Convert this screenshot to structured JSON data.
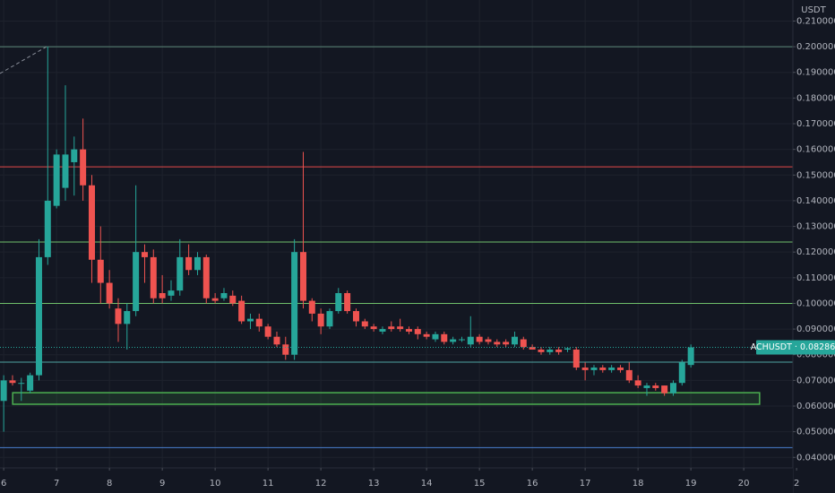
{
  "chart_data": {
    "type": "candlestick",
    "axis_unit": "USDT",
    "x": [
      6,
      6.167,
      6.333,
      6.5,
      6.667,
      6.833,
      7,
      7.167,
      7.333,
      7.5,
      7.667,
      7.833,
      8,
      8.167,
      8.333,
      8.5,
      8.667,
      8.833,
      9,
      9.167,
      9.333,
      9.5,
      9.667,
      9.833,
      10,
      10.167,
      10.333,
      10.5,
      10.667,
      10.833,
      11,
      11.167,
      11.333,
      11.5,
      11.667,
      11.833,
      12,
      12.167,
      12.333,
      12.5,
      12.667,
      12.833,
      13,
      13.167,
      13.333,
      13.5,
      13.667,
      13.833,
      14,
      14.167,
      14.333,
      14.5,
      14.667,
      14.833,
      15,
      15.167,
      15.333,
      15.5,
      15.667,
      15.833,
      16,
      16.167,
      16.333,
      16.5,
      16.667,
      16.833,
      17,
      17.167,
      17.333,
      17.5,
      17.667,
      17.833,
      18,
      18.167,
      18.333,
      18.5,
      18.667,
      18.833,
      19
    ],
    "open": [
      0.062,
      0.07,
      0.069,
      0.066,
      0.072,
      0.118,
      0.138,
      0.145,
      0.155,
      0.16,
      0.146,
      0.117,
      0.108,
      0.098,
      0.092,
      0.097,
      0.12,
      0.118,
      0.104,
      0.103,
      0.105,
      0.118,
      0.113,
      0.118,
      0.102,
      0.102,
      0.103,
      0.101,
      0.093,
      0.094,
      0.091,
      0.087,
      0.084,
      0.08,
      0.12,
      0.101,
      0.096,
      0.091,
      0.097,
      0.104,
      0.097,
      0.093,
      0.091,
      0.089,
      0.091,
      0.091,
      0.09,
      0.09,
      0.088,
      0.086,
      0.088,
      0.085,
      0.086,
      0.084,
      0.087,
      0.086,
      0.085,
      0.085,
      0.084,
      0.086,
      0.083,
      0.082,
      0.081,
      0.082,
      0.082,
      0.082,
      0.075,
      0.074,
      0.075,
      0.074,
      0.075,
      0.074,
      0.07,
      0.067,
      0.068,
      0.068,
      0.065,
      0.069,
      0.076
    ],
    "high": [
      0.072,
      0.072,
      0.071,
      0.073,
      0.125,
      0.2,
      0.16,
      0.185,
      0.165,
      0.172,
      0.15,
      0.13,
      0.113,
      0.102,
      0.1,
      0.146,
      0.123,
      0.121,
      0.111,
      0.109,
      0.125,
      0.123,
      0.12,
      0.119,
      0.104,
      0.106,
      0.105,
      0.103,
      0.096,
      0.096,
      0.092,
      0.089,
      0.087,
      0.125,
      0.159,
      0.102,
      0.098,
      0.098,
      0.106,
      0.105,
      0.098,
      0.094,
      0.092,
      0.091,
      0.093,
      0.094,
      0.091,
      0.091,
      0.089,
      0.089,
      0.089,
      0.087,
      0.087,
      0.095,
      0.088,
      0.087,
      0.086,
      0.086,
      0.089,
      0.087,
      0.084,
      0.083,
      0.083,
      0.083,
      0.083,
      0.083,
      0.077,
      0.076,
      0.076,
      0.076,
      0.076,
      0.077,
      0.072,
      0.069,
      0.069,
      0.068,
      0.07,
      0.078,
      0.084
    ],
    "low": [
      0.05,
      0.068,
      0.062,
      0.065,
      0.07,
      0.115,
      0.137,
      0.14,
      0.142,
      0.14,
      0.108,
      0.1,
      0.098,
      0.085,
      0.082,
      0.095,
      0.108,
      0.1,
      0.1,
      0.101,
      0.103,
      0.111,
      0.111,
      0.1,
      0.1,
      0.101,
      0.099,
      0.092,
      0.09,
      0.089,
      0.086,
      0.083,
      0.078,
      0.078,
      0.098,
      0.093,
      0.088,
      0.09,
      0.096,
      0.096,
      0.091,
      0.09,
      0.089,
      0.088,
      0.089,
      0.089,
      0.088,
      0.086,
      0.086,
      0.085,
      0.084,
      0.084,
      0.085,
      0.083,
      0.084,
      0.084,
      0.083,
      0.083,
      0.083,
      0.082,
      0.082,
      0.08,
      0.08,
      0.08,
      0.081,
      0.074,
      0.07,
      0.072,
      0.073,
      0.073,
      0.073,
      0.069,
      0.067,
      0.064,
      0.066,
      0.064,
      0.064,
      0.068,
      0.075
    ],
    "close": [
      0.07,
      0.069,
      0.069,
      0.072,
      0.118,
      0.14,
      0.158,
      0.158,
      0.16,
      0.146,
      0.117,
      0.108,
      0.1,
      0.092,
      0.097,
      0.12,
      0.118,
      0.102,
      0.102,
      0.105,
      0.118,
      0.113,
      0.118,
      0.102,
      0.101,
      0.104,
      0.1,
      0.093,
      0.094,
      0.091,
      0.087,
      0.084,
      0.08,
      0.12,
      0.101,
      0.096,
      0.091,
      0.097,
      0.104,
      0.097,
      0.093,
      0.091,
      0.09,
      0.09,
      0.09,
      0.09,
      0.089,
      0.088,
      0.087,
      0.088,
      0.085,
      0.086,
      0.086,
      0.087,
      0.085,
      0.085,
      0.084,
      0.084,
      0.087,
      0.083,
      0.082,
      0.081,
      0.082,
      0.081,
      0.0825,
      0.075,
      0.074,
      0.075,
      0.074,
      0.075,
      0.074,
      0.07,
      0.068,
      0.068,
      0.067,
      0.065,
      0.069,
      0.077,
      0.08286
    ],
    "up_color": "#26a69a",
    "down_color": "#ef5350",
    "xlim": [
      5.93,
      20.93
    ],
    "ylim": [
      0.0359,
      0.2182
    ],
    "xticks": [
      6,
      7,
      8,
      9,
      10,
      11,
      12,
      13,
      14,
      15,
      16,
      17,
      18,
      19,
      20,
      {
        "value": 21,
        "label": "2"
      }
    ],
    "yticks": [
      {
        "value": 0.04,
        "label": "0.040000"
      },
      {
        "value": 0.05,
        "label": "0.050000"
      },
      {
        "value": 0.06,
        "label": "0.060000"
      },
      {
        "value": 0.07,
        "label": "0.070000"
      },
      {
        "value": 0.08,
        "label": "0.080000"
      },
      {
        "value": 0.09,
        "label": "0.090000"
      },
      {
        "value": 0.1,
        "label": "0.100000"
      },
      {
        "value": 0.11,
        "label": "0.110000"
      },
      {
        "value": 0.12,
        "label": "0.120000"
      },
      {
        "value": 0.13,
        "label": "0.130000"
      },
      {
        "value": 0.14,
        "label": "0.140000"
      },
      {
        "value": 0.15,
        "label": "0.150000"
      },
      {
        "value": 0.16,
        "label": "0.160000"
      },
      {
        "value": 0.17,
        "label": "0.170000"
      },
      {
        "value": 0.18,
        "label": "0.180000"
      },
      {
        "value": 0.19,
        "label": "0.190000"
      },
      {
        "value": 0.2,
        "label": "0.200000"
      },
      {
        "value": 0.21,
        "label": "0.210000"
      }
    ],
    "grid": true,
    "levels": [
      {
        "value": 0.2,
        "color": "#5d8a7a"
      },
      {
        "value": 0.1532,
        "color": "#e5494a"
      },
      {
        "value": 0.1239,
        "color": "#6fbf6a"
      },
      {
        "value": 0.1,
        "color": "#6fbf6a"
      },
      {
        "value": 0.0771,
        "color": "#4fa3a0"
      },
      {
        "value": 0.0438,
        "color": "#4a7fd0"
      }
    ],
    "zone": {
      "x": [
        6.17,
        20.3
      ],
      "y": [
        0.0607,
        0.0652
      ],
      "color": "#4caf50"
    },
    "last_price": {
      "value": 0.08286,
      "label": "ACHUSDT · 0.082860"
    }
  }
}
